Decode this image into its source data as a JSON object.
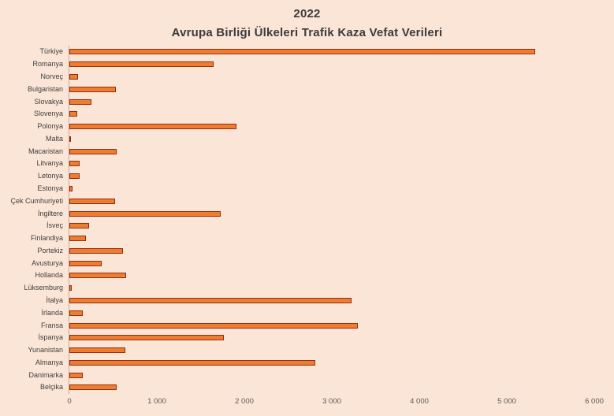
{
  "header": {
    "title": "2022",
    "subtitle": "Avrupa Birliği Ülkeleri Trafik Kaza Vefat Verileri"
  },
  "colors": {
    "background": "#fbe5d6",
    "bar_fill": "#ed7d31",
    "bar_border": "#962b10",
    "title_text": "#3b3b3b",
    "category_text": "#404040",
    "tick_text": "#595959",
    "axis_line": "#bfab99"
  },
  "chart_data": {
    "type": "bar",
    "orientation": "horizontal",
    "title": "2022",
    "subtitle": "Avrupa Birliği Ülkeleri Trafik Kaza Vefat Verileri",
    "categories": [
      "Türkiye",
      "Romanya",
      "Norveç",
      "Bulgaristan",
      "Slovakya",
      "Slovenya",
      "Polonya",
      "Malta",
      "Macaristan",
      "Litvanya",
      "Letonya",
      "Estonya",
      "Çek Cumhuriyeti",
      "İngiltere",
      "İsveç",
      "Finlandiya",
      "Portekiz",
      "Avusturya",
      "Hollanda",
      "Lüksemburg",
      "İtalya",
      "İrlanda",
      "Fransa",
      "İspanya",
      "Yunanistan",
      "Almanya",
      "Danimarka",
      "Belçika"
    ],
    "values": [
      5280,
      1633,
      95,
      531,
      254,
      85,
      1896,
      20,
      535,
      115,
      113,
      40,
      520,
      1711,
      220,
      189,
      605,
      370,
      640,
      30,
      3200,
      155,
      3267,
      1746,
      638,
      2790,
      152,
      540
    ],
    "xlabel": "",
    "ylabel": "",
    "xlim": [
      0,
      6000
    ],
    "x_tick_values": [
      0,
      1000,
      2000,
      3000,
      4000,
      5000,
      6000
    ],
    "x_tick_labels": [
      "0",
      "1 000",
      "2 000",
      "3 000",
      "4 000",
      "5 000",
      "6 000"
    ],
    "grid": false,
    "legend": false
  }
}
